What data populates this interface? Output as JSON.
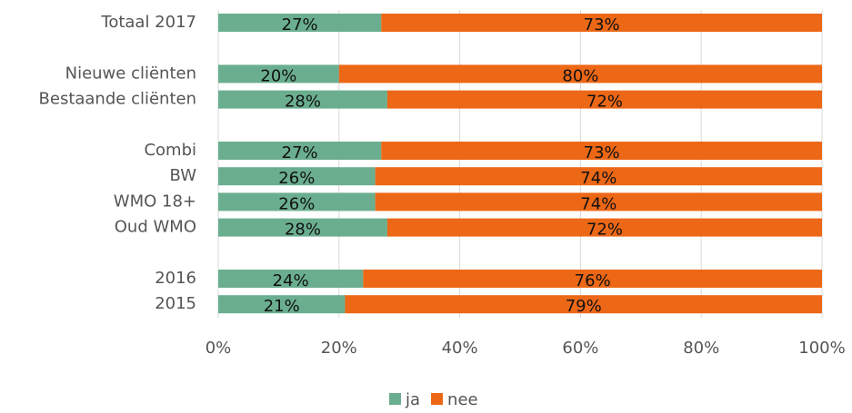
{
  "chart_data": {
    "type": "stacked_barh",
    "categories": [
      "Totaal 2017",
      null,
      "Nieuwe cliënten",
      "Bestaande cliënten",
      null,
      "Combi",
      "BW",
      "WMO 18+",
      "Oud WMO",
      null,
      "2016",
      "2015"
    ],
    "series": [
      {
        "name": "ja",
        "color": "#6aae8f",
        "values": [
          27,
          null,
          20,
          28,
          null,
          27,
          26,
          26,
          28,
          null,
          24,
          21
        ],
        "value_labels": [
          "27%",
          null,
          "20%",
          "28%",
          null,
          "27%",
          "26%",
          "26%",
          "28%",
          null,
          "24%",
          "21%"
        ]
      },
      {
        "name": "nee",
        "color": "#ec6716",
        "values": [
          73,
          null,
          80,
          72,
          null,
          73,
          74,
          74,
          72,
          null,
          76,
          79
        ],
        "value_labels": [
          "73%",
          null,
          "80%",
          "72%",
          null,
          "73%",
          "74%",
          "74%",
          "72%",
          null,
          "76%",
          "79%"
        ]
      }
    ],
    "xlim": [
      0,
      100
    ],
    "xticks": [
      {
        "value": 0,
        "label": "0%"
      },
      {
        "value": 20,
        "label": "20%"
      },
      {
        "value": 40,
        "label": "40%"
      },
      {
        "value": 60,
        "label": "60%"
      },
      {
        "value": 80,
        "label": "80%"
      },
      {
        "value": 100,
        "label": "100%"
      }
    ],
    "grid": true,
    "legend": "bottom"
  }
}
